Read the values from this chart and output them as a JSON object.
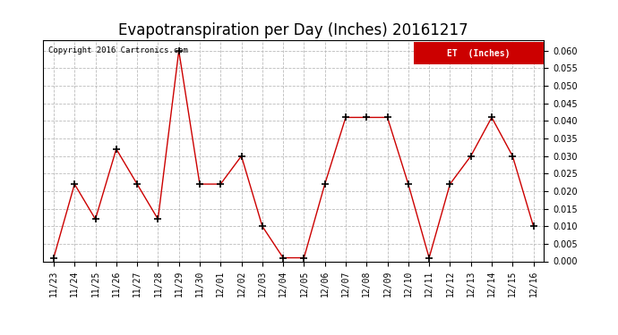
{
  "title": "Evapotranspiration per Day (Inches) 20161217",
  "copyright_text": "Copyright 2016 Cartronics.com",
  "legend_label": "ET  (Inches)",
  "legend_bg": "#cc0000",
  "legend_text_color": "#ffffff",
  "dates": [
    "11/23",
    "11/24",
    "11/25",
    "11/26",
    "11/27",
    "11/28",
    "11/29",
    "11/30",
    "12/01",
    "12/02",
    "12/03",
    "12/04",
    "12/05",
    "12/06",
    "12/07",
    "12/08",
    "12/09",
    "12/10",
    "12/11",
    "12/12",
    "12/13",
    "12/14",
    "12/15",
    "12/16"
  ],
  "values": [
    0.001,
    0.022,
    0.012,
    0.032,
    0.022,
    0.012,
    0.06,
    0.022,
    0.022,
    0.03,
    0.01,
    0.001,
    0.001,
    0.022,
    0.041,
    0.041,
    0.041,
    0.022,
    0.001,
    0.022,
    0.03,
    0.041,
    0.03,
    0.01
  ],
  "line_color": "#cc0000",
  "marker": "+",
  "marker_color": "#000000",
  "ylim": [
    0.0,
    0.063
  ],
  "yticks": [
    0.0,
    0.005,
    0.01,
    0.015,
    0.02,
    0.025,
    0.03,
    0.035,
    0.04,
    0.045,
    0.05,
    0.055,
    0.06
  ],
  "grid_color": "#bbbbbb",
  "grid_style": "--",
  "bg_color": "#ffffff",
  "title_fontsize": 12,
  "tick_fontsize": 7,
  "copyright_fontsize": 6.5
}
